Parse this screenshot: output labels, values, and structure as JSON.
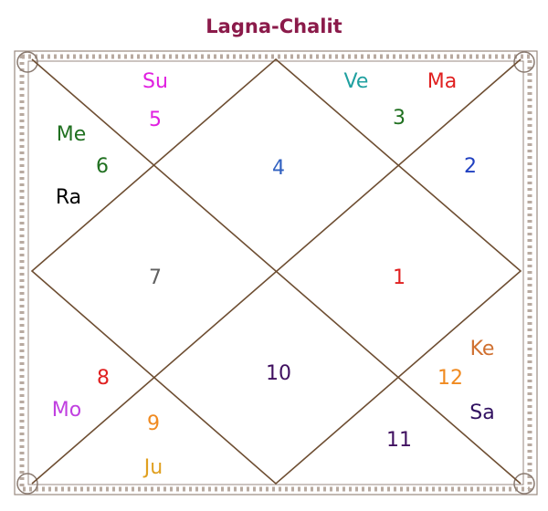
{
  "title": "Lagna-Chalit",
  "houses": [
    {
      "number": 1,
      "planets": []
    },
    {
      "number": 2,
      "planets": []
    },
    {
      "number": 3,
      "planets": [
        "Ve",
        "Ma"
      ]
    },
    {
      "number": 4,
      "planets": []
    },
    {
      "number": 5,
      "planets": [
        "Su"
      ]
    },
    {
      "number": 6,
      "planets": [
        "Me",
        "Ra"
      ]
    },
    {
      "number": 7,
      "planets": []
    },
    {
      "number": 8,
      "planets": [
        "Mo"
      ]
    },
    {
      "number": 9,
      "planets": [
        "Ju"
      ]
    },
    {
      "number": 10,
      "planets": []
    },
    {
      "number": 11,
      "planets": []
    },
    {
      "number": 12,
      "planets": [
        "Ke",
        "Sa"
      ]
    }
  ]
}
